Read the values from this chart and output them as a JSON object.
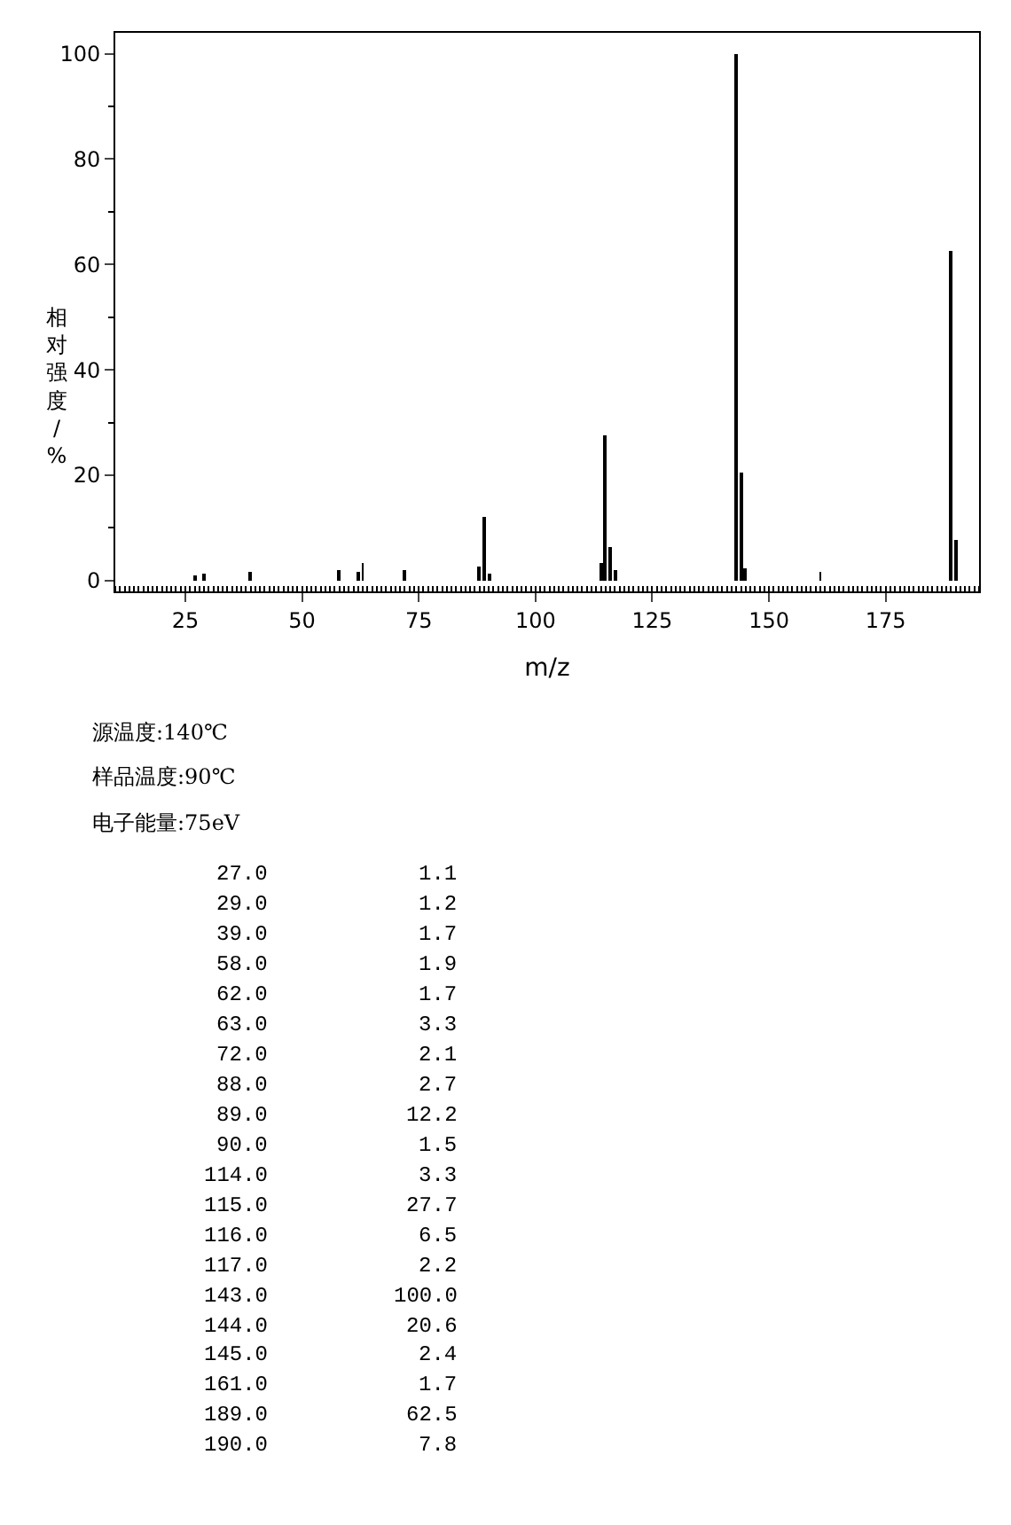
{
  "chart_data": {
    "type": "bar",
    "xlabel": "m/z",
    "ylabel": "相对强度/%",
    "x": [
      27,
      29,
      39,
      58,
      62,
      63,
      72,
      88,
      89,
      90,
      114,
      115,
      116,
      117,
      143,
      144,
      145,
      161,
      189,
      190
    ],
    "values": [
      1.1,
      1.2,
      1.7,
      1.9,
      1.7,
      3.3,
      2.1,
      2.7,
      12.2,
      1.5,
      3.3,
      27.7,
      6.5,
      2.2,
      100.0,
      20.6,
      2.4,
      1.7,
      62.5,
      7.8
    ],
    "color": "#000000",
    "xlim": [
      10,
      195
    ],
    "xticks": [
      25,
      50,
      75,
      100,
      125,
      150,
      175
    ],
    "ylim": [
      -2,
      104
    ],
    "yticks": [
      0,
      20,
      40,
      60,
      80,
      100
    ],
    "annotations": [
      "源温度:140℃",
      "样品温度:90℃",
      "电子能量:75eV",
      "27.0",
      "1.1",
      "29.0",
      "1.2",
      "39.0",
      "1.7",
      "58.0",
      "1.9",
      "62.0",
      "1.7",
      "63.0",
      "3.3",
      "72.0",
      "2.1",
      "88.0",
      "2.7",
      "89.0",
      "12.2",
      "90.0",
      "1.5",
      "114.0",
      "3.3",
      "115.0",
      "27.7",
      "116.0",
      "6.5",
      "117.0",
      "2.2",
      "143.0",
      "100.0",
      "144.0",
      "20.6",
      "145.0",
      "2.4",
      "161.0",
      "1.7",
      "189.0",
      "62.5",
      "190.0",
      "7.8"
    ]
  }
}
